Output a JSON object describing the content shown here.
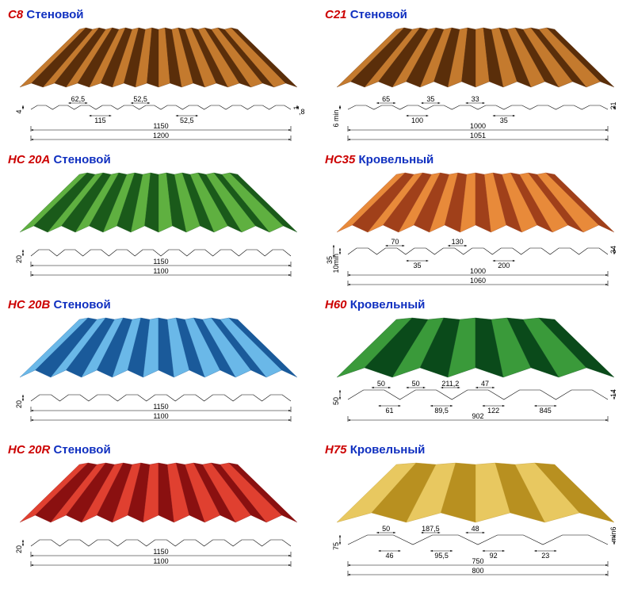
{
  "panels": [
    {
      "code": "С8",
      "type": "Стеновой",
      "color_light": "#c47a2e",
      "color_dark": "#5a2e0a",
      "waves": 12,
      "amp": 5,
      "profile_dims_top": [
        "62,5",
        "52,5"
      ],
      "profile_dims_bot": [
        "115",
        "52,5"
      ],
      "width1": "1150",
      "width2": "1200",
      "left_h": "4",
      "right_h": "1",
      "right_h2": ",8"
    },
    {
      "code": "С21",
      "type": "Стеновой",
      "color_light": "#c47a2e",
      "color_dark": "#5a2e0a",
      "waves": 10,
      "amp": 7,
      "profile_dims_top": [
        "65",
        "35",
        "33"
      ],
      "profile_dims_bot": [
        "100",
        "35"
      ],
      "width1": "1000",
      "width2": "1051",
      "left_h": "6 min",
      "right_h": "21"
    },
    {
      "code": "НС 20А",
      "type": "Стеновой",
      "color_light": "#5fb040",
      "color_dark": "#1a5a1a",
      "waves": 10,
      "amp": 8,
      "width1": "1150",
      "width2": "1100",
      "left_h": "20",
      "simple_profile": true
    },
    {
      "code": "НС35",
      "type": "Кровельный",
      "color_light": "#e88a3a",
      "color_dark": "#a0401a",
      "waves": 9,
      "amp": 9,
      "profile_dims_top": [
        "70",
        "130"
      ],
      "profile_dims_bot": [
        "35",
        "200"
      ],
      "width1": "1000",
      "width2": "1060",
      "left_h": "10min",
      "left_h2": "35",
      "right_h": "34"
    },
    {
      "code": "НС 20В",
      "type": "Стеновой",
      "color_light": "#6ab8e8",
      "color_dark": "#1a5a9a",
      "waves": 9,
      "amp": 9,
      "width1": "1150",
      "width2": "1100",
      "left_h": "20",
      "simple_profile": true
    },
    {
      "code": "Н60",
      "type": "Кровельный",
      "color_light": "#3a9a3a",
      "color_dark": "#0a4a1a",
      "waves": 5,
      "amp": 14,
      "profile_dims_top": [
        "50",
        "50",
        "211,2",
        "47"
      ],
      "profile_dims_bot": [
        "61",
        "89,5",
        "122",
        "845"
      ],
      "width1": "902",
      "left_h": "50",
      "right_h": "14",
      "deep": true
    },
    {
      "code": "НС 20R",
      "type": "Стеновой",
      "color_light": "#e04030",
      "color_dark": "#8a1010",
      "waves": 9,
      "amp": 9,
      "width1": "1150",
      "width2": "1100",
      "left_h": "20",
      "simple_profile": true
    },
    {
      "code": "Н75",
      "type": "Кровельный",
      "color_light": "#e8c860",
      "color_dark": "#b89020",
      "waves": 4,
      "amp": 16,
      "profile_dims_top": [
        "50",
        "187,5",
        "48"
      ],
      "profile_dims_bot": [
        "46",
        "95,5",
        "92",
        "23"
      ],
      "width1": "750",
      "width2": "800",
      "left_h": "75",
      "right_h": "min6",
      "deep": true
    }
  ]
}
